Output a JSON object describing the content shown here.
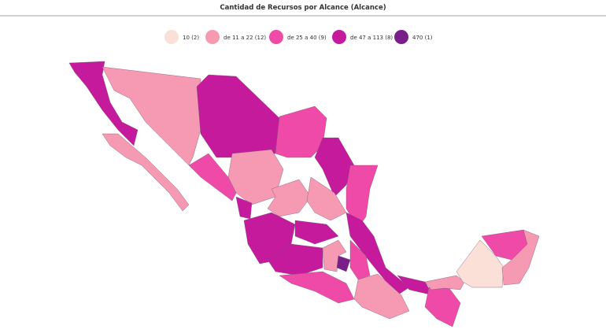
{
  "title": "Cantidad de Recursos por Alcance (Alcance)",
  "legend": [
    {
      "label": "10 (2)",
      "color": "#fbe0d8"
    },
    {
      "label": "de 11 a 22 (12)",
      "color": "#f59ab2"
    },
    {
      "label": "de 25 a 40 (9)",
      "color": "#ef4aa8"
    },
    {
      "label": "de 47 a 113 (8)",
      "color": "#c41a9b"
    },
    {
      "label": "470 (1)",
      "color": "#7a1e8a"
    }
  ]
}
